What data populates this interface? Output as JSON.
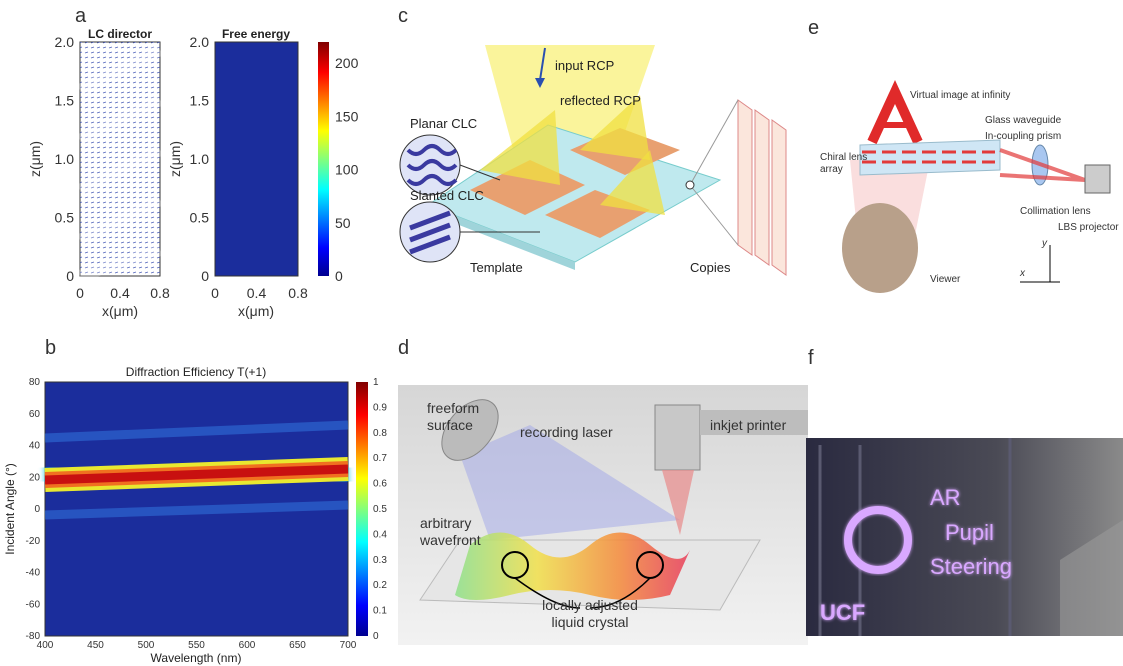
{
  "a": {
    "label": "a",
    "director": {
      "title": "LC director"
    },
    "energy": {
      "title": "Free energy"
    },
    "ylabel": "z(μm)",
    "xlabel": "x(μm)",
    "yticks": [
      "0",
      "0.5",
      "1.0",
      "1.5",
      "2.0"
    ],
    "xticks": [
      "0",
      "0.4",
      "0.8"
    ],
    "colorbar_ticks": [
      0,
      50,
      100,
      150,
      200
    ]
  },
  "b": {
    "label": "b",
    "title": "Diffraction Efficiency T(+1)",
    "xlabel": "Wavelength (nm)",
    "ylabel": "Incident Angle (°)",
    "xticks": [
      400,
      450,
      500,
      550,
      600,
      650,
      700
    ],
    "yticks": [
      -80,
      -60,
      -40,
      -20,
      0,
      20,
      40,
      60,
      80
    ],
    "colorbar_ticks": [
      0,
      0.1,
      0.2,
      0.3,
      0.4,
      0.5,
      0.6,
      0.7,
      0.8,
      0.9,
      1
    ]
  },
  "c": {
    "label": "c",
    "input": "input RCP",
    "reflected": "reflected RCP",
    "planar": "Planar CLC",
    "slanted": "Slanted CLC",
    "template": "Template",
    "copies": "Copies"
  },
  "d": {
    "label": "d",
    "freeform": [
      "freeform",
      "surface"
    ],
    "laser": "recording laser",
    "printer": "inkjet printer",
    "wavefront": [
      "arbitrary",
      "wavefront"
    ],
    "lc": [
      "locally adjusted",
      "liquid crystal"
    ]
  },
  "e": {
    "label": "e",
    "virtual": "Virtual image at infinity",
    "waveguide": "Glass waveguide",
    "prism": "In-coupling prism",
    "chiral": [
      "Chiral lens",
      "array"
    ],
    "collimation": "Collimation lens",
    "projector": "LBS projector",
    "viewer": "Viewer",
    "axis_y": "y",
    "axis_x": "x"
  },
  "f": {
    "label": "f",
    "overlay": [
      "AR",
      "Pupil",
      "Steering",
      "UCF"
    ]
  }
}
